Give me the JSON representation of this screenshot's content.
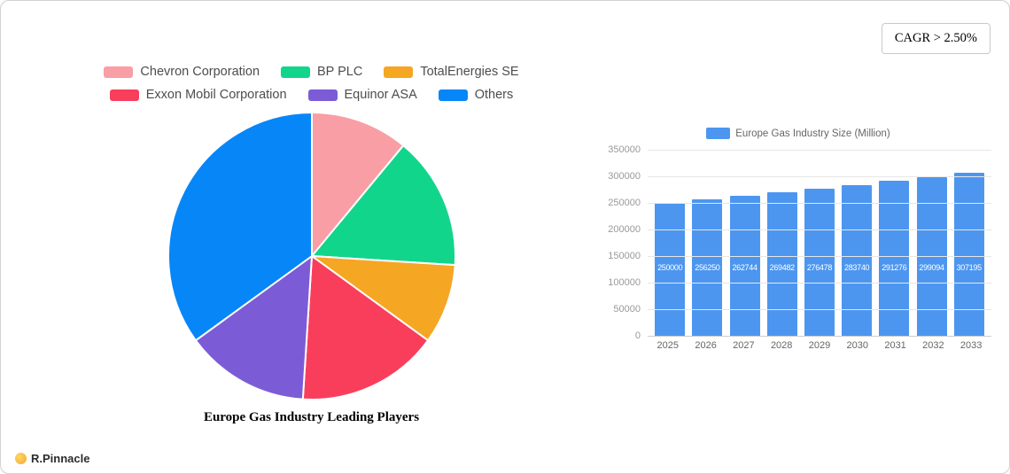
{
  "page": {
    "cagr_badge": "CAGR > 2.50%",
    "logo_text": "R.Pinnacle"
  },
  "chart_data": [
    {
      "type": "pie",
      "title": "Europe Gas Industry Leading Players",
      "labels": [
        "Chevron Corporation",
        "BP PLC",
        "TotalEnergies SE",
        "Exxon Mobil Corporation",
        "Equinor ASA",
        "Others"
      ],
      "values": [
        11,
        15,
        9,
        16,
        14,
        35
      ],
      "colors": [
        "#F89EA4",
        "#12D58C",
        "#F5A623",
        "#F93E5C",
        "#7C5CD6",
        "#0786F8"
      ],
      "legend_position": "top",
      "start_angle_deg": 0
    },
    {
      "type": "bar",
      "legend_label": "Europe Gas Industry Size (Million)",
      "categories": [
        "2025",
        "2026",
        "2027",
        "2028",
        "2029",
        "2030",
        "2031",
        "2032",
        "2033"
      ],
      "values": [
        250000,
        256250,
        262744,
        269482,
        276478,
        283740,
        291276,
        299094,
        307195
      ],
      "bar_color": "#4D96F0",
      "ylim": [
        0,
        350000
      ],
      "yticks": [
        0,
        50000,
        100000,
        150000,
        200000,
        250000,
        300000,
        350000
      ],
      "grid": true,
      "legend_position": "top"
    }
  ]
}
